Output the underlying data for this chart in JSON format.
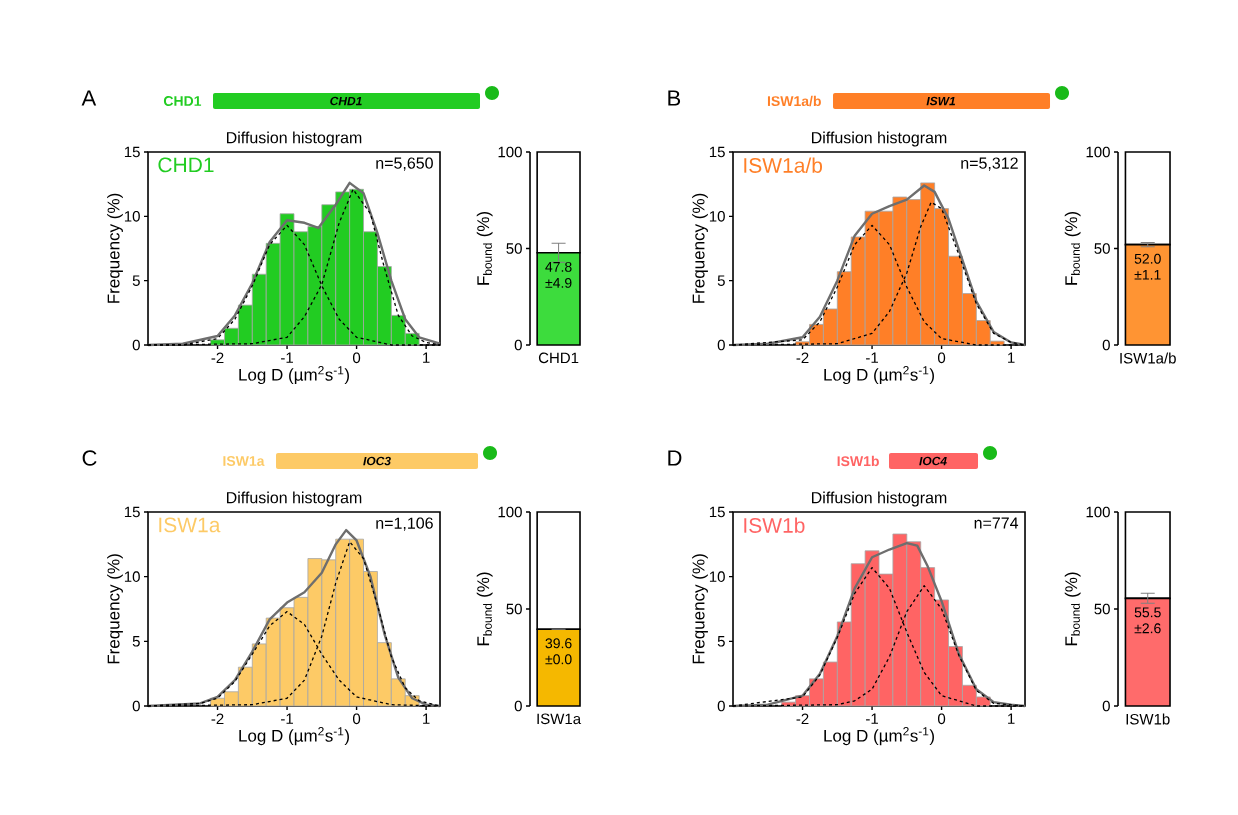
{
  "chart_data": [
    {
      "type": "histogram",
      "title": "Diffusion histogram",
      "xlabel": "Log D (µm$^{2}$s$^{-1}$)",
      "ylabel": "Frequency (%)",
      "annotations": [
        "A",
        "CHD1",
        "CHD1",
        "n=5,650"
      ],
      "legend": "top left",
      "bins": [
        -2.1,
        -1.9,
        -1.7,
        -1.5,
        -1.3,
        -1.1,
        -0.9,
        -0.7,
        -0.5,
        -0.3,
        -0.1,
        0.1,
        0.3,
        0.5,
        0.7,
        0.9
      ],
      "series": [
        {
          "name": "CHD1",
          "color": "#22cc22",
          "values": [
            0.4,
            1.3,
            3.1,
            5.5,
            7.9,
            10.2,
            8.8,
            9.2,
            10.9,
            11.9,
            12.1,
            8.8,
            6.1,
            2.3,
            0.9
          ]
        },
        {
          "type": "line",
          "color": "#6e6e6e",
          "line_style": "solid",
          "x": [
            -3,
            -2.5,
            -2,
            -1.75,
            -1.5,
            -1.25,
            -1,
            -0.75,
            -0.55,
            -0.3,
            -0.1,
            0.1,
            0.3,
            0.5,
            0.7,
            0.9,
            1.2
          ],
          "values": [
            0,
            0.1,
            0.7,
            2.3,
            4.8,
            8.0,
            9.7,
            9.5,
            9.1,
            10.9,
            12.6,
            11.8,
            8.7,
            5.0,
            2.0,
            0.6,
            0.1
          ]
        },
        {
          "type": "line",
          "color": "#000000",
          "line_style": "dashed",
          "x": [
            -3,
            -2.5,
            -2,
            -1.75,
            -1.5,
            -1.25,
            -1,
            -0.75,
            -0.5,
            -0.25,
            0,
            0.5,
            1.2
          ],
          "values": [
            0,
            0,
            0.5,
            2.0,
            4.6,
            7.8,
            9.3,
            7.8,
            4.6,
            2.0,
            0.6,
            0,
            0
          ]
        },
        {
          "type": "line",
          "color": "#000000",
          "line_style": "dashed",
          "x": [
            -3,
            -1.5,
            -1,
            -0.75,
            -0.5,
            -0.25,
            -0.05,
            0.2,
            0.4,
            0.6,
            0.8,
            1.0,
            1.2
          ],
          "values": [
            0,
            0.1,
            0.6,
            2.2,
            4.7,
            9.5,
            12.1,
            10.2,
            6.0,
            2.3,
            0.7,
            0.2,
            0
          ]
        }
      ],
      "xlim": [
        -3,
        1.2
      ],
      "xticks": [
        -2,
        -1,
        0,
        1
      ],
      "ylim": [
        0,
        15
      ],
      "yticks": [
        0,
        5,
        10,
        15
      ]
    },
    {
      "type": "bar",
      "ylabel": "F$_{bound}$ (%)",
      "categories": [
        "CHD1"
      ],
      "stacked": true,
      "series": [
        {
          "color": "#3ddc3d",
          "values": [
            47.8
          ],
          "errors": [
            4.9
          ],
          "value_labels": [
            "47.8 ±4.9"
          ]
        },
        {
          "color": "#ffffff",
          "values": [
            52.2
          ]
        }
      ],
      "ylim": [
        0,
        100
      ],
      "yticks": [
        0,
        50,
        100
      ]
    },
    {
      "type": "histogram",
      "title": "Diffusion histogram",
      "xlabel": "Log D (µm$^{2}$s$^{-1}$)",
      "ylabel": "Frequency (%)",
      "annotations": [
        "B",
        "ISW1a/b",
        "ISW1",
        "n=5,312"
      ],
      "legend": "top left",
      "bins": [
        -2.1,
        -1.9,
        -1.7,
        -1.5,
        -1.3,
        -1.1,
        -0.9,
        -0.7,
        -0.5,
        -0.3,
        -0.1,
        0.1,
        0.3,
        0.5,
        0.7,
        0.9
      ],
      "series": [
        {
          "name": "ISW1a/b",
          "color": "#ff7f27",
          "values": [
            0.25,
            1.6,
            2.8,
            5.7,
            8.4,
            10.4,
            10.4,
            11.5,
            11.3,
            12.6,
            10.6,
            6.9,
            4.0,
            1.9,
            0.3
          ]
        },
        {
          "type": "line",
          "color": "#6e6e6e",
          "line_style": "solid",
          "x": [
            -3,
            -2.5,
            -2,
            -1.75,
            -1.5,
            -1.25,
            -1,
            -0.75,
            -0.5,
            -0.25,
            -0.1,
            0.1,
            0.25,
            0.5,
            0.75,
            1,
            1.2
          ],
          "values": [
            0,
            0.1,
            0.6,
            2.2,
            5.0,
            8.5,
            10.2,
            10.8,
            11.3,
            12.4,
            11.9,
            9.8,
            7.4,
            3.4,
            1.0,
            0.2,
            0
          ]
        },
        {
          "type": "line",
          "color": "#000000",
          "line_style": "dashed",
          "x": [
            -3,
            -2,
            -1.75,
            -1.5,
            -1.25,
            -1,
            -0.75,
            -0.5,
            -0.25,
            0,
            0.5,
            1.2
          ],
          "values": [
            0,
            0.4,
            1.8,
            4.5,
            7.8,
            9.3,
            7.8,
            4.5,
            1.8,
            0.5,
            0,
            0
          ]
        },
        {
          "type": "line",
          "color": "#000000",
          "line_style": "dashed",
          "x": [
            -3,
            -1.5,
            -1,
            -0.75,
            -0.5,
            -0.3,
            -0.15,
            0,
            0.25,
            0.5,
            0.75,
            1,
            1.2
          ],
          "values": [
            0,
            0.1,
            0.9,
            2.6,
            5.6,
            9.2,
            11.1,
            10.6,
            7.0,
            3.2,
            0.9,
            0.2,
            0
          ]
        }
      ],
      "xlim": [
        -3,
        1.2
      ],
      "xticks": [
        -2,
        -1,
        0,
        1
      ],
      "ylim": [
        0,
        15
      ],
      "yticks": [
        0,
        5,
        10,
        15
      ]
    },
    {
      "type": "bar",
      "ylabel": "F$_{bound}$ (%)",
      "categories": [
        "ISW1a/b"
      ],
      "stacked": true,
      "series": [
        {
          "color": "#ff9433",
          "values": [
            52.0
          ],
          "errors": [
            1.1
          ],
          "value_labels": [
            "52.0 ±1.1"
          ]
        },
        {
          "color": "#ffffff",
          "values": [
            48.0
          ]
        }
      ],
      "ylim": [
        0,
        100
      ],
      "yticks": [
        0,
        50,
        100
      ]
    },
    {
      "type": "histogram",
      "title": "Diffusion histogram",
      "xlabel": "Log D (µm$^{2}$s$^{-1}$)",
      "ylabel": "Frequency (%)",
      "annotations": [
        "C",
        "ISW1a",
        "IOC3",
        "n=1,106"
      ],
      "legend": "top left",
      "bins": [
        -2.1,
        -1.9,
        -1.7,
        -1.5,
        -1.3,
        -1.1,
        -0.9,
        -0.7,
        -0.5,
        -0.3,
        -0.1,
        0.1,
        0.3,
        0.5,
        0.7,
        0.9
      ],
      "series": [
        {
          "name": "ISW1a",
          "color": "#fdca66",
          "values": [
            0.6,
            1.1,
            3.0,
            4.8,
            6.8,
            7.6,
            8.4,
            11.4,
            11.3,
            12.9,
            12.9,
            10.4,
            4.9,
            2.1,
            0.8
          ]
        },
        {
          "type": "line",
          "color": "#6e6e6e",
          "line_style": "solid",
          "x": [
            -3,
            -2.25,
            -2,
            -1.75,
            -1.5,
            -1.25,
            -1,
            -0.75,
            -0.5,
            -0.3,
            -0.15,
            0,
            0.2,
            0.4,
            0.6,
            0.8,
            1,
            1.2
          ],
          "values": [
            0,
            0.2,
            0.7,
            2.0,
            4.2,
            6.7,
            8.0,
            8.8,
            10.3,
            12.5,
            13.6,
            12.8,
            10.0,
            5.6,
            2.2,
            0.6,
            0.1,
            0
          ]
        },
        {
          "type": "line",
          "color": "#000000",
          "line_style": "dashed",
          "x": [
            -3,
            -2.25,
            -2,
            -1.75,
            -1.5,
            -1.25,
            -1,
            -0.75,
            -0.5,
            -0.25,
            0,
            0.5,
            1.2
          ],
          "values": [
            0,
            0.2,
            0.6,
            1.9,
            4.0,
            6.2,
            7.3,
            6.3,
            4.0,
            2.0,
            0.7,
            0.1,
            0
          ]
        },
        {
          "type": "line",
          "color": "#000000",
          "line_style": "dashed",
          "x": [
            -3,
            -1.5,
            -1,
            -0.75,
            -0.5,
            -0.3,
            -0.1,
            0.1,
            0.3,
            0.5,
            0.7,
            0.9,
            1.2
          ],
          "values": [
            0,
            0.1,
            0.6,
            2.0,
            5.4,
            9.5,
            12.7,
            11.4,
            7.8,
            3.8,
            1.4,
            0.4,
            0
          ]
        }
      ],
      "xlim": [
        -3,
        1.2
      ],
      "xticks": [
        -2,
        -1,
        0,
        1
      ],
      "ylim": [
        0,
        15
      ],
      "yticks": [
        0,
        5,
        10,
        15
      ]
    },
    {
      "type": "bar",
      "ylabel": "F$_{bound}$ (%)",
      "categories": [
        "ISW1a"
      ],
      "stacked": true,
      "series": [
        {
          "color": "#f5b800",
          "values": [
            39.6
          ],
          "errors": [
            0.0
          ],
          "value_labels": [
            "39.6 ±0.0"
          ]
        },
        {
          "color": "#ffffff",
          "values": [
            60.4
          ]
        }
      ],
      "ylim": [
        0,
        100
      ],
      "yticks": [
        0,
        50,
        100
      ]
    },
    {
      "type": "histogram",
      "title": "Diffusion histogram",
      "xlabel": "Log D (µm$^{2}$s$^{-1}$)",
      "ylabel": "Frequency (%)",
      "annotations": [
        "D",
        "ISW1b",
        "IOC4",
        "n=774"
      ],
      "legend": "top left",
      "bins": [
        -2.3,
        -2.1,
        -1.9,
        -1.7,
        -1.5,
        -1.3,
        -1.1,
        -0.9,
        -0.7,
        -0.5,
        -0.3,
        -0.1,
        0.1,
        0.3,
        0.5,
        0.7
      ],
      "series": [
        {
          "name": "ISW1b",
          "color": "#ff6464",
          "values": [
            0.3,
            0.8,
            2.1,
            3.4,
            6.5,
            11.0,
            12.0,
            10.2,
            13.3,
            12.7,
            10.7,
            8.2,
            4.6,
            1.6,
            0.7
          ]
        },
        {
          "type": "line",
          "color": "#6e6e6e",
          "line_style": "solid",
          "x": [
            -3,
            -2.5,
            -2,
            -1.75,
            -1.5,
            -1.25,
            -1,
            -0.75,
            -0.5,
            -0.35,
            -0.2,
            0,
            0.25,
            0.5,
            0.75,
            1,
            1.2
          ],
          "values": [
            0,
            0.1,
            0.8,
            2.5,
            5.4,
            9.1,
            11.5,
            12.1,
            12.6,
            12.4,
            10.8,
            8.1,
            4.0,
            1.3,
            0.3,
            0.1,
            0
          ]
        },
        {
          "type": "line",
          "color": "#000000",
          "line_style": "dashed",
          "x": [
            -3,
            -2,
            -1.75,
            -1.5,
            -1.25,
            -1,
            -0.75,
            -0.5,
            -0.25,
            0,
            0.5,
            1.2
          ],
          "values": [
            0,
            0.7,
            2.4,
            5.3,
            8.7,
            10.7,
            9.1,
            5.7,
            2.6,
            0.8,
            0,
            0
          ]
        },
        {
          "type": "line",
          "color": "#000000",
          "line_style": "dashed",
          "x": [
            -3,
            -1.5,
            -1.25,
            -1,
            -0.75,
            -0.5,
            -0.25,
            0,
            0.25,
            0.5,
            0.75,
            1.2
          ],
          "values": [
            0,
            0.1,
            0.4,
            1.3,
            3.8,
            7.3,
            9.3,
            7.5,
            3.9,
            1.2,
            0.2,
            0
          ]
        }
      ],
      "xlim": [
        -3,
        1.2
      ],
      "xticks": [
        -2,
        -1,
        0,
        1
      ],
      "ylim": [
        0,
        15
      ],
      "yticks": [
        0,
        5,
        10,
        15
      ]
    },
    {
      "type": "bar",
      "ylabel": "F$_{bound}$ (%)",
      "categories": [
        "ISW1b"
      ],
      "stacked": true,
      "series": [
        {
          "color": "#ff6b6b",
          "values": [
            55.5
          ],
          "errors": [
            2.6
          ],
          "value_labels": [
            "55.5 ±2.6"
          ]
        },
        {
          "color": "#ffffff",
          "values": [
            44.5
          ]
        }
      ],
      "ylim": [
        0,
        100
      ],
      "yticks": [
        0,
        50,
        100
      ]
    }
  ]
}
